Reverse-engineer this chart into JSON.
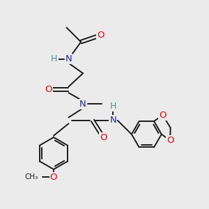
{
  "background_color": "#ebebeb",
  "bond_color": "#1a1a1a",
  "atom_colors": {
    "O": "#ff0000",
    "N": "#2222cc",
    "H": "#4a9090",
    "C": "#1a1a1a"
  },
  "figsize": [
    3.0,
    3.0
  ],
  "dpi": 100,
  "lw": 1.4
}
